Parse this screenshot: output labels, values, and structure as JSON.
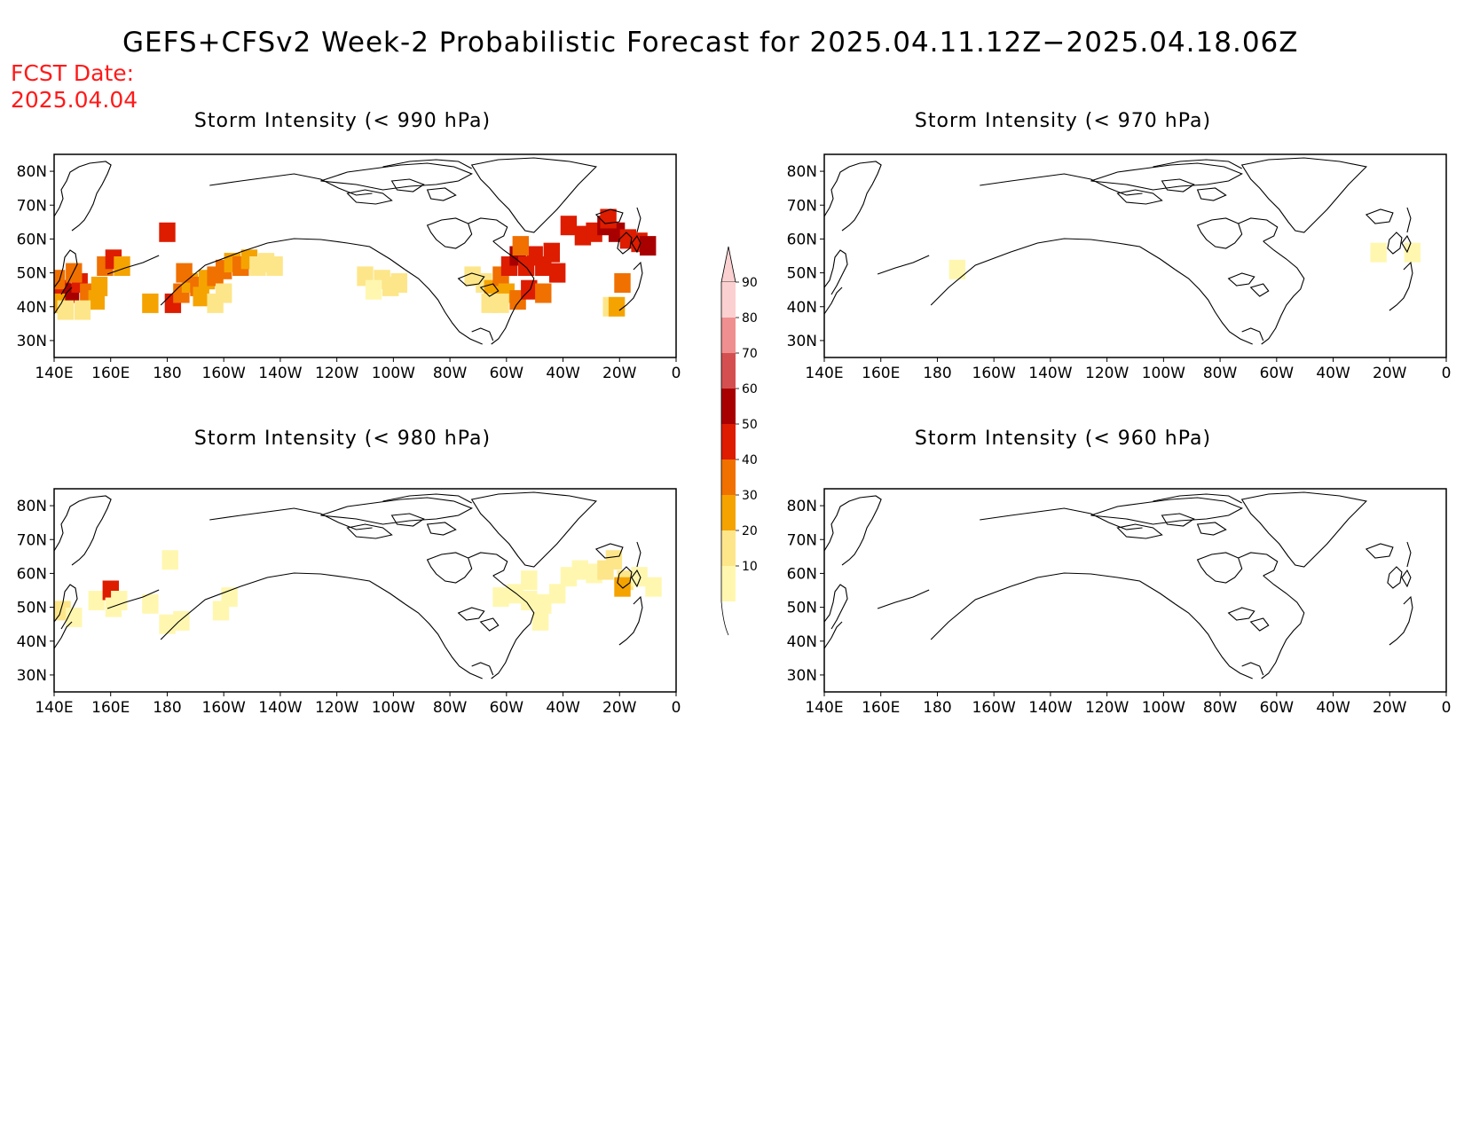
{
  "title": "GEFS+CFSv2 Week-2 Probabilistic Forecast for 2025.04.11.12Z−2025.04.18.06Z",
  "fcst_label": "FCST Date:",
  "fcst_date": "2025.04.04",
  "lon_ticks": [
    "140E",
    "160E",
    "180",
    "160W",
    "140W",
    "120W",
    "100W",
    "80W",
    "60W",
    "40W",
    "20W",
    "0"
  ],
  "lat_ticks": [
    "80N",
    "70N",
    "60N",
    "50N",
    "40N",
    "30N"
  ],
  "panels": [
    {
      "id": "p990",
      "title": "Storm Intensity (< 990 hPa)"
    },
    {
      "id": "p970",
      "title": "Storm Intensity (< 970 hPa)"
    },
    {
      "id": "p980",
      "title": "Storm Intensity (< 980 hPa)"
    },
    {
      "id": "p960",
      "title": "Storm Intensity (< 960 hPa)"
    }
  ],
  "colorbar": {
    "levels": [
      "10",
      "20",
      "30",
      "40",
      "50",
      "60",
      "70",
      "80",
      "90"
    ],
    "colors": [
      "#fff7b0",
      "#fde68a",
      "#f5a300",
      "#f07000",
      "#dd1c00",
      "#a80000",
      "#d45050",
      "#f08f8f",
      "#fbd0d0"
    ]
  },
  "shading": {
    "p990": [
      {
        "lon": 143,
        "lat": 45,
        "v": 50
      },
      {
        "lon": 146,
        "lat": 44,
        "v": 60
      },
      {
        "lon": 149,
        "lat": 47,
        "v": 50
      },
      {
        "lon": 152,
        "lat": 44,
        "v": 40
      },
      {
        "lon": 155,
        "lat": 42,
        "v": 30
      },
      {
        "lon": 141,
        "lat": 41,
        "v": 30
      },
      {
        "lon": 144,
        "lat": 39,
        "v": 20
      },
      {
        "lon": 150,
        "lat": 39,
        "v": 20
      },
      {
        "lon": 156,
        "lat": 46,
        "v": 30
      },
      {
        "lon": 158,
        "lat": 52,
        "v": 40
      },
      {
        "lon": 161,
        "lat": 54,
        "v": 50
      },
      {
        "lon": 164,
        "lat": 52,
        "v": 30
      },
      {
        "lon": 147,
        "lat": 50,
        "v": 40
      },
      {
        "lon": 141,
        "lat": 48,
        "v": 40
      },
      {
        "lon": 182,
        "lat": 41,
        "v": 50
      },
      {
        "lon": 185,
        "lat": 44,
        "v": 40
      },
      {
        "lon": 188,
        "lat": 47,
        "v": 30
      },
      {
        "lon": 191,
        "lat": 46,
        "v": 40
      },
      {
        "lon": 194,
        "lat": 48,
        "v": 30
      },
      {
        "lon": 197,
        "lat": 49,
        "v": 40
      },
      {
        "lon": 200,
        "lat": 51,
        "v": 40
      },
      {
        "lon": 203,
        "lat": 53,
        "v": 30
      },
      {
        "lon": 206,
        "lat": 52,
        "v": 40
      },
      {
        "lon": 209,
        "lat": 54,
        "v": 30
      },
      {
        "lon": 212,
        "lat": 52,
        "v": 20
      },
      {
        "lon": 215,
        "lat": 53,
        "v": 20
      },
      {
        "lon": 218,
        "lat": 52,
        "v": 20
      },
      {
        "lon": 186,
        "lat": 50,
        "v": 40
      },
      {
        "lon": 192,
        "lat": 43,
        "v": 30
      },
      {
        "lon": 200,
        "lat": 44,
        "v": 20
      },
      {
        "lon": 197,
        "lat": 41,
        "v": 20
      },
      {
        "lon": 174,
        "lat": 41,
        "v": 30
      },
      {
        "lon": 180,
        "lat": 62,
        "v": 50
      },
      {
        "lon": 250,
        "lat": 49,
        "v": 20
      },
      {
        "lon": 256,
        "lat": 48,
        "v": 20
      },
      {
        "lon": 262,
        "lat": 47,
        "v": 20
      },
      {
        "lon": 253,
        "lat": 45,
        "v": 10
      },
      {
        "lon": 259,
        "lat": 46,
        "v": 20
      },
      {
        "lon": 292,
        "lat": 47,
        "v": 20
      },
      {
        "lon": 295,
        "lat": 45,
        "v": 30
      },
      {
        "lon": 298,
        "lat": 49,
        "v": 40
      },
      {
        "lon": 301,
        "lat": 52,
        "v": 50
      },
      {
        "lon": 304,
        "lat": 55,
        "v": 60
      },
      {
        "lon": 307,
        "lat": 52,
        "v": 50
      },
      {
        "lon": 310,
        "lat": 55,
        "v": 50
      },
      {
        "lon": 313,
        "lat": 52,
        "v": 50
      },
      {
        "lon": 316,
        "lat": 56,
        "v": 50
      },
      {
        "lon": 300,
        "lat": 44,
        "v": 30
      },
      {
        "lon": 304,
        "lat": 42,
        "v": 40
      },
      {
        "lon": 308,
        "lat": 45,
        "v": 50
      },
      {
        "lon": 313,
        "lat": 44,
        "v": 40
      },
      {
        "lon": 318,
        "lat": 50,
        "v": 50
      },
      {
        "lon": 294,
        "lat": 41,
        "v": 20
      },
      {
        "lon": 298,
        "lat": 41,
        "v": 20
      },
      {
        "lon": 305,
        "lat": 58,
        "v": 40
      },
      {
        "lon": 288,
        "lat": 49,
        "v": 20
      },
      {
        "lon": 322,
        "lat": 64,
        "v": 50
      },
      {
        "lon": 327,
        "lat": 61,
        "v": 50
      },
      {
        "lon": 331,
        "lat": 62,
        "v": 50
      },
      {
        "lon": 335,
        "lat": 64,
        "v": 60
      },
      {
        "lon": 339,
        "lat": 62,
        "v": 60
      },
      {
        "lon": 343,
        "lat": 60,
        "v": 50
      },
      {
        "lon": 347,
        "lat": 59,
        "v": 50
      },
      {
        "lon": 350,
        "lat": 58,
        "v": 60
      },
      {
        "lon": 336,
        "lat": 66,
        "v": 50
      },
      {
        "lon": 341,
        "lat": 47,
        "v": 40
      },
      {
        "lon": 337,
        "lat": 40,
        "v": 20
      },
      {
        "lon": 339,
        "lat": 40,
        "v": 30
      }
    ],
    "p970": [
      {
        "lon": 187,
        "lat": 51,
        "v": 10
      },
      {
        "lon": 336,
        "lat": 56,
        "v": 10
      },
      {
        "lon": 348,
        "lat": 56,
        "v": 10
      }
    ],
    "p980": [
      {
        "lon": 143,
        "lat": 49,
        "v": 20
      },
      {
        "lon": 147,
        "lat": 47,
        "v": 10
      },
      {
        "lon": 155,
        "lat": 52,
        "v": 10
      },
      {
        "lon": 160,
        "lat": 55,
        "v": 50
      },
      {
        "lon": 163,
        "lat": 52,
        "v": 10
      },
      {
        "lon": 161,
        "lat": 50,
        "v": 10
      },
      {
        "lon": 174,
        "lat": 51,
        "v": 10
      },
      {
        "lon": 180,
        "lat": 45,
        "v": 10
      },
      {
        "lon": 185,
        "lat": 46,
        "v": 10
      },
      {
        "lon": 181,
        "lat": 64,
        "v": 10
      },
      {
        "lon": 202,
        "lat": 53,
        "v": 10
      },
      {
        "lon": 199,
        "lat": 49,
        "v": 10
      },
      {
        "lon": 298,
        "lat": 53,
        "v": 10
      },
      {
        "lon": 303,
        "lat": 54,
        "v": 10
      },
      {
        "lon": 308,
        "lat": 52,
        "v": 10
      },
      {
        "lon": 313,
        "lat": 51,
        "v": 10
      },
      {
        "lon": 318,
        "lat": 54,
        "v": 10
      },
      {
        "lon": 312,
        "lat": 46,
        "v": 10
      },
      {
        "lon": 322,
        "lat": 59,
        "v": 10
      },
      {
        "lon": 326,
        "lat": 61,
        "v": 10
      },
      {
        "lon": 331,
        "lat": 60,
        "v": 10
      },
      {
        "lon": 335,
        "lat": 61,
        "v": 20
      },
      {
        "lon": 338,
        "lat": 64,
        "v": 20
      },
      {
        "lon": 342,
        "lat": 58,
        "v": 20
      },
      {
        "lon": 347,
        "lat": 59,
        "v": 10
      },
      {
        "lon": 352,
        "lat": 56,
        "v": 10
      },
      {
        "lon": 341,
        "lat": 56,
        "v": 30
      },
      {
        "lon": 308,
        "lat": 58,
        "v": 10
      }
    ],
    "p960": []
  }
}
